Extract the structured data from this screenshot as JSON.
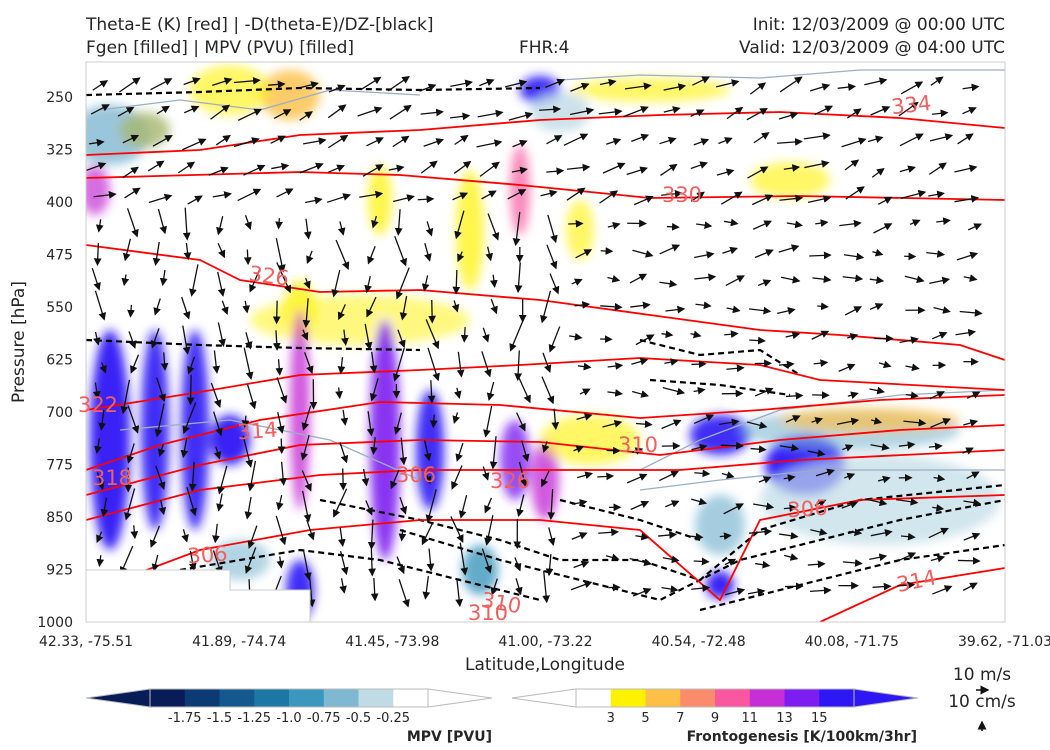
{
  "header": {
    "line1_left": "Theta-E (K) [red] | -D(theta-E)/DZ-[black]",
    "line2_left": "Fgen [filled] | MPV (PVU) [filled]",
    "fhr": "FHR:4",
    "init": "Init: 12/03/2009 @ 00:00 UTC",
    "valid": "Valid: 12/03/2009 @ 04:00 UTC"
  },
  "chart_data": {
    "type": "cross-section",
    "xlabel": "Latitude,Longitude",
    "ylabel": "Pressure [hPa]",
    "x_ticks": [
      "42.33, -75.51",
      "41.89, -74.74",
      "41.45, -73.98",
      "41.00, -73.22",
      "40.54, -72.48",
      "40.08, -71.75",
      "39.62, -71.03"
    ],
    "y_ticks": [
      250,
      325,
      400,
      475,
      550,
      625,
      700,
      775,
      850,
      925,
      1000
    ],
    "ylim": [
      1000,
      200
    ],
    "y_inverted": true,
    "theta_e_contour_labels": [
      "334",
      "330",
      "326",
      "322",
      "314",
      "318",
      "310",
      "306",
      "306",
      "310",
      "306",
      "314",
      "310",
      "326"
    ],
    "mpv_colorbar": {
      "title": "MPV [PVU]",
      "ticks": [
        "-1.75",
        "-1.5",
        "-1.25",
        "-1.0",
        "-0.75",
        "-0.5",
        "-0.25"
      ],
      "colors": [
        "#081d58",
        "#0c3a72",
        "#13588e",
        "#1d77a5",
        "#3b97bd",
        "#7fb8d1",
        "#bfdbe6",
        "#ffffff"
      ]
    },
    "fgen_colorbar": {
      "title": "Frontogenesis [K/100km/3hr]",
      "ticks": [
        "3",
        "5",
        "7",
        "9",
        "11",
        "13",
        "15"
      ],
      "colors": [
        "#ffffff",
        "#fff200",
        "#fdbf45",
        "#fb8c6b",
        "#f958a0",
        "#c62ed6",
        "#7d1ef0",
        "#2e17f5"
      ]
    },
    "vector_keys": [
      "10 m/s",
      "10 cm/s"
    ],
    "colors": {
      "theta_e": "#ff0000",
      "stability": "#000000",
      "label_red": "#f06060",
      "mpv_line": "#9aaec6"
    }
  }
}
